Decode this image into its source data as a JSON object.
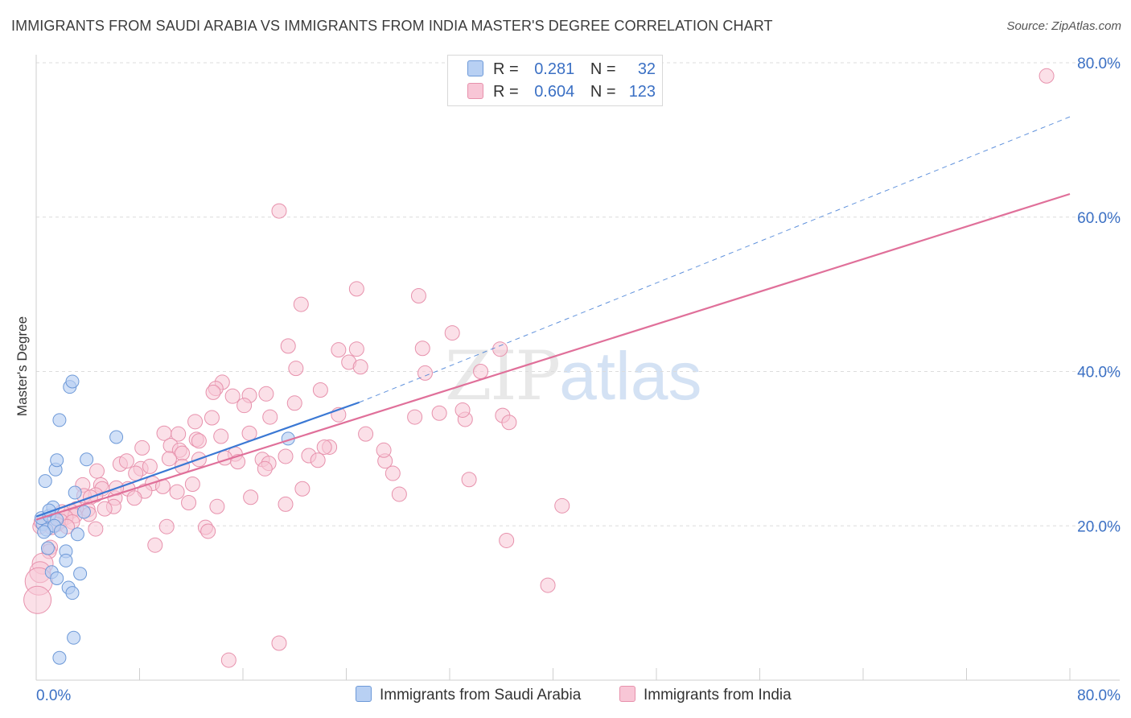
{
  "title": "IMMIGRANTS FROM SAUDI ARABIA VS IMMIGRANTS FROM INDIA MASTER'S DEGREE CORRELATION CHART",
  "source": "Source: ZipAtlas.com",
  "watermark": {
    "zip": "ZIP",
    "atlas": "atlas"
  },
  "legend_top": {
    "rows": [
      {
        "r_label": "R =",
        "r_value": "0.281",
        "n_label": "N =",
        "n_value": "32"
      },
      {
        "r_label": "R =",
        "r_value": "0.604",
        "n_label": "N =",
        "n_value": "123"
      }
    ]
  },
  "legend_bottom": {
    "series1": "Immigrants from Saudi Arabia",
    "series2": "Immigrants from India"
  },
  "colors": {
    "blue_fill": "#b8d0f3",
    "blue_stroke": "#6d99d8",
    "blue_line": "#3a78d4",
    "pink_fill": "#f8c6d6",
    "pink_stroke": "#e791ac",
    "pink_line": "#e0709a",
    "tick_label": "#3b70c4"
  },
  "chart_data": {
    "type": "scatter",
    "title": "IMMIGRANTS FROM SAUDI ARABIA VS IMMIGRANTS FROM INDIA MASTER'S DEGREE CORRELATION CHART",
    "xlabel": "",
    "ylabel": "Master's Degree",
    "xlim": [
      0,
      80
    ],
    "ylim": [
      0,
      80
    ],
    "x_tick_labels": [
      "0.0%",
      "80.0%"
    ],
    "y_tick_labels": [
      "20.0%",
      "40.0%",
      "60.0%",
      "80.0%"
    ],
    "y_ticks": [
      20,
      40,
      60,
      80
    ],
    "series": [
      {
        "name": "Immigrants from Saudi Arabia",
        "R": 0.281,
        "N": 32,
        "trend": {
          "x0": 0,
          "y0": 21.2,
          "x1": 25,
          "y1": 36.0,
          "extend_to_x": 80,
          "extend_to_y": 73.0
        },
        "points": [
          [
            0.5,
            20.2
          ],
          [
            0.8,
            19.5
          ],
          [
            0.4,
            21.0
          ],
          [
            1.0,
            21.3
          ],
          [
            1.3,
            22.4
          ],
          [
            1.0,
            22.0
          ],
          [
            1.6,
            20.8
          ],
          [
            1.4,
            20.0
          ],
          [
            0.7,
            25.8
          ],
          [
            1.5,
            27.3
          ],
          [
            1.6,
            28.5
          ],
          [
            1.8,
            33.7
          ],
          [
            2.6,
            38.0
          ],
          [
            2.8,
            38.7
          ],
          [
            3.0,
            24.3
          ],
          [
            3.7,
            21.8
          ],
          [
            3.9,
            28.6
          ],
          [
            6.2,
            31.5
          ],
          [
            1.9,
            19.3
          ],
          [
            3.2,
            18.9
          ],
          [
            2.3,
            16.7
          ],
          [
            2.3,
            15.5
          ],
          [
            1.2,
            14.0
          ],
          [
            1.6,
            13.2
          ],
          [
            2.5,
            12.0
          ],
          [
            3.4,
            13.8
          ],
          [
            2.8,
            11.3
          ],
          [
            2.9,
            5.5
          ],
          [
            1.8,
            2.9
          ],
          [
            19.5,
            31.3
          ],
          [
            0.9,
            17.1
          ],
          [
            0.6,
            19.2
          ]
        ]
      },
      {
        "name": "Immigrants from India",
        "R": 0.604,
        "N": 123,
        "trend": {
          "x0": 0,
          "y0": 20.8,
          "x1": 80,
          "y1": 63.0
        },
        "points": [
          [
            78.2,
            78.3
          ],
          [
            18.8,
            60.8
          ],
          [
            24.8,
            50.7
          ],
          [
            29.6,
            49.8
          ],
          [
            20.5,
            48.7
          ],
          [
            32.2,
            45.0
          ],
          [
            19.5,
            43.3
          ],
          [
            23.4,
            42.8
          ],
          [
            24.8,
            42.9
          ],
          [
            29.9,
            43.0
          ],
          [
            35.9,
            42.9
          ],
          [
            24.2,
            41.2
          ],
          [
            25.1,
            40.6
          ],
          [
            20.1,
            40.4
          ],
          [
            30.1,
            39.8
          ],
          [
            34.4,
            40.0
          ],
          [
            14.4,
            38.6
          ],
          [
            13.9,
            37.8
          ],
          [
            13.7,
            37.3
          ],
          [
            17.8,
            37.1
          ],
          [
            15.2,
            36.8
          ],
          [
            16.5,
            36.9
          ],
          [
            22.0,
            37.6
          ],
          [
            20.0,
            35.9
          ],
          [
            16.1,
            35.6
          ],
          [
            31.2,
            34.6
          ],
          [
            23.4,
            34.4
          ],
          [
            13.6,
            34.0
          ],
          [
            12.3,
            33.5
          ],
          [
            18.1,
            34.1
          ],
          [
            29.3,
            34.1
          ],
          [
            33.2,
            33.8
          ],
          [
            36.1,
            34.3
          ],
          [
            36.6,
            33.4
          ],
          [
            9.9,
            32.0
          ],
          [
            11.0,
            31.9
          ],
          [
            14.3,
            31.6
          ],
          [
            12.4,
            31.2
          ],
          [
            16.5,
            32.0
          ],
          [
            12.6,
            31.0
          ],
          [
            10.4,
            30.4
          ],
          [
            15.4,
            29.3
          ],
          [
            22.7,
            30.2
          ],
          [
            11.1,
            29.8
          ],
          [
            11.3,
            29.4
          ],
          [
            21.1,
            29.1
          ],
          [
            19.3,
            29.0
          ],
          [
            14.6,
            28.8
          ],
          [
            15.6,
            28.3
          ],
          [
            17.5,
            28.6
          ],
          [
            12.6,
            28.6
          ],
          [
            10.3,
            28.7
          ],
          [
            21.8,
            28.5
          ],
          [
            18.0,
            28.1
          ],
          [
            27.0,
            28.4
          ],
          [
            6.5,
            28.0
          ],
          [
            7.0,
            28.4
          ],
          [
            11.3,
            27.7
          ],
          [
            8.1,
            27.4
          ],
          [
            8.8,
            27.7
          ],
          [
            4.7,
            27.1
          ],
          [
            7.7,
            26.8
          ],
          [
            17.7,
            27.4
          ],
          [
            27.6,
            26.8
          ],
          [
            12.1,
            25.4
          ],
          [
            9.0,
            25.5
          ],
          [
            5.0,
            25.3
          ],
          [
            3.6,
            25.3
          ],
          [
            9.8,
            25.1
          ],
          [
            7.1,
            24.8
          ],
          [
            8.4,
            24.5
          ],
          [
            5.1,
            24.8
          ],
          [
            10.9,
            24.4
          ],
          [
            4.6,
            24.0
          ],
          [
            3.7,
            23.9
          ],
          [
            6.1,
            23.6
          ],
          [
            4.2,
            23.7
          ],
          [
            16.6,
            23.7
          ],
          [
            7.6,
            23.6
          ],
          [
            11.8,
            23.0
          ],
          [
            6.0,
            22.5
          ],
          [
            5.3,
            22.2
          ],
          [
            4.0,
            22.1
          ],
          [
            3.1,
            22.2
          ],
          [
            2.7,
            21.9
          ],
          [
            4.1,
            21.5
          ],
          [
            2.0,
            21.8
          ],
          [
            3.0,
            21.3
          ],
          [
            2.3,
            21.1
          ],
          [
            1.9,
            20.6
          ],
          [
            2.8,
            20.5
          ],
          [
            1.6,
            20.2
          ],
          [
            2.4,
            19.9
          ],
          [
            1.2,
            19.8
          ],
          [
            4.6,
            19.6
          ],
          [
            10.1,
            19.9
          ],
          [
            13.1,
            19.8
          ],
          [
            13.3,
            19.3
          ],
          [
            9.2,
            17.5
          ],
          [
            33.5,
            26.0
          ],
          [
            28.1,
            24.1
          ],
          [
            40.7,
            22.6
          ],
          [
            36.4,
            18.1
          ],
          [
            39.6,
            12.3
          ],
          [
            18.8,
            4.8
          ],
          [
            14.9,
            2.6
          ],
          [
            1.1,
            17.2
          ],
          [
            1.0,
            16.7
          ],
          [
            0.5,
            15.1
          ],
          [
            0.3,
            14.0
          ],
          [
            0.2,
            12.8
          ],
          [
            0.1,
            10.4
          ],
          [
            0.3,
            19.9
          ],
          [
            0.4,
            20.5
          ],
          [
            14.0,
            22.5
          ],
          [
            19.3,
            22.8
          ],
          [
            26.9,
            29.8
          ],
          [
            22.3,
            30.2
          ],
          [
            8.2,
            30.1
          ],
          [
            6.2,
            24.9
          ],
          [
            33.0,
            35.0
          ],
          [
            20.6,
            24.8
          ],
          [
            25.5,
            31.9
          ]
        ]
      }
    ]
  }
}
